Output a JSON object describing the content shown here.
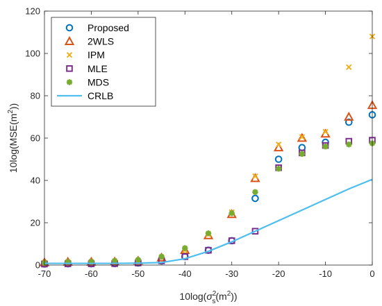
{
  "chart_data": {
    "type": "scatter",
    "xlim": [
      -70,
      0
    ],
    "ylim": [
      0,
      120
    ],
    "xticks": [
      -70,
      -60,
      -50,
      -40,
      -30,
      -20,
      -10,
      0
    ],
    "yticks": [
      0,
      20,
      40,
      60,
      80,
      100,
      120
    ],
    "xtick_labels": [
      "-70",
      "-60",
      "-50",
      "-40",
      "-30",
      "-20",
      "-10",
      "0"
    ],
    "ytick_labels": [
      "0",
      "20",
      "40",
      "60",
      "80",
      "100",
      "120"
    ],
    "xlabel": {
      "prefix": "10log(",
      "sigma": "σ",
      "sub": "s",
      "sup": "2",
      "mid": "(m",
      "sup2": "2",
      "suffix": "))"
    },
    "ylabel": {
      "prefix": "10log(MSE(m",
      "sup": "2",
      "suffix": "))"
    },
    "grid": false,
    "legend_position": "top-left",
    "x": [
      -70,
      -65,
      -60,
      -55,
      -50,
      -45,
      -40,
      -35,
      -30,
      -25,
      -20,
      -15,
      -10,
      -5,
      0
    ],
    "series": [
      {
        "name": "Proposed",
        "marker": "circle",
        "color": "#0072BD",
        "values": [
          0.5,
          0.6,
          0.6,
          0.7,
          1.0,
          2.0,
          4.0,
          7.0,
          11.5,
          31.5,
          50,
          55.5,
          58,
          67.5,
          71
        ]
      },
      {
        "name": "2WLS",
        "marker": "triangle",
        "color": "#D95319",
        "values": [
          1.2,
          1.5,
          1.5,
          1.6,
          2.0,
          3.5,
          7.0,
          14,
          24,
          41,
          55.5,
          60,
          62,
          70,
          75.5
        ]
      },
      {
        "name": "IPM",
        "marker": "x",
        "color": "#EDB120",
        "values": [
          1.2,
          1.4,
          1.5,
          1.6,
          2.0,
          3.5,
          7.0,
          14.5,
          25,
          42,
          57,
          60.5,
          63,
          93.5,
          108
        ]
      },
      {
        "name": "MLE",
        "marker": "square",
        "color": "#7E2F8E",
        "values": [
          0.5,
          0.6,
          0.6,
          0.7,
          1.0,
          2.0,
          4.0,
          7.0,
          11.5,
          16,
          46,
          53,
          56.5,
          58.5,
          59
        ]
      },
      {
        "name": "MDS",
        "marker": "asterisk",
        "color": "#77AC30",
        "values": [
          1.0,
          1.5,
          1.6,
          2.0,
          2.5,
          4.0,
          8.0,
          15,
          24.5,
          34.5,
          45.5,
          52.5,
          56,
          57,
          57.5
        ]
      },
      {
        "name": "CRLB",
        "marker": "line",
        "color": "#4DBEEE",
        "values": [
          0.8,
          0.8,
          0.8,
          0.8,
          0.9,
          1.2,
          3.0,
          6.5,
          11,
          16,
          21,
          26,
          31,
          36,
          40.5
        ]
      }
    ]
  }
}
